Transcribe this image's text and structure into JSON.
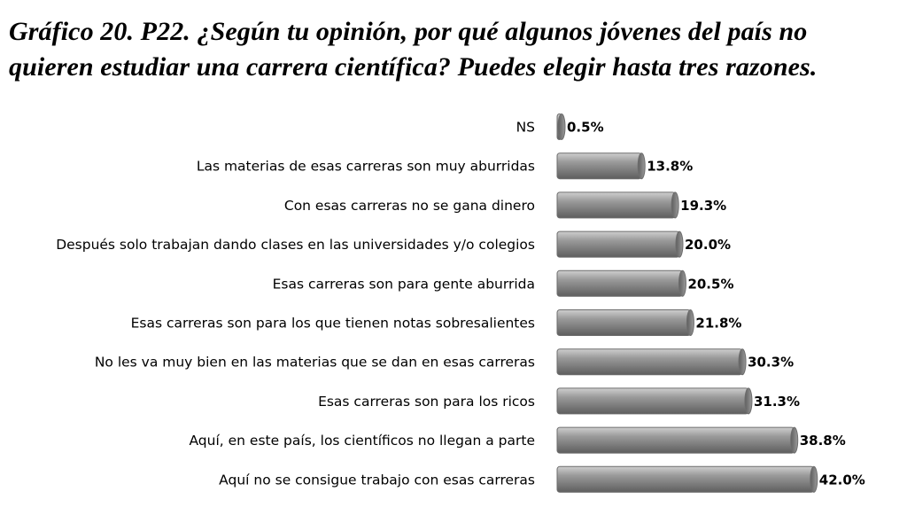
{
  "title_line1": "Gráfico 20. P22. ¿Según tu opinión, por qué algunos jóvenes del país no",
  "title_line2": "quieren estudiar una carrera científica? Puedes elegir hasta tres razones.",
  "colors": {
    "bar_fill": "#9a9a9a",
    "bar_light": "#cfcfcf",
    "bar_dark": "#5e5e5e"
  },
  "chart_data": {
    "type": "bar",
    "orientation": "horizontal",
    "title": "Gráfico 20. P22. ¿Según tu opinión, por qué algunos jóvenes del país no quieren estudiar una carrera científica? Puedes elegir hasta tres razones.",
    "xlabel": "",
    "ylabel": "",
    "xlim": [
      0,
      45
    ],
    "grid": false,
    "legend": "none",
    "categories": [
      "NS",
      "Las materias de esas carreras son muy aburridas",
      "Con esas carreras no se gana dinero",
      "Después solo trabajan dando clases en las universidades y/o colegios",
      "Esas carreras son para gente aburrida",
      "Esas carreras son para los que  tienen notas sobresalientes",
      "No les va muy bien en las materias que se dan en esas carreras",
      "Esas carreras son para los ricos",
      "Aquí, en este país, los científicos no llegan a parte",
      "Aquí no se consigue trabajo con esas carreras"
    ],
    "values": [
      0.5,
      13.8,
      19.3,
      20.0,
      20.5,
      21.8,
      30.3,
      31.3,
      38.8,
      42.0
    ],
    "value_labels": [
      "0.5%",
      "13.8%",
      "19.3%",
      "20.0%",
      "20.5%",
      "21.8%",
      "30.3%",
      "31.3%",
      "38.8%",
      "42.0%"
    ]
  }
}
